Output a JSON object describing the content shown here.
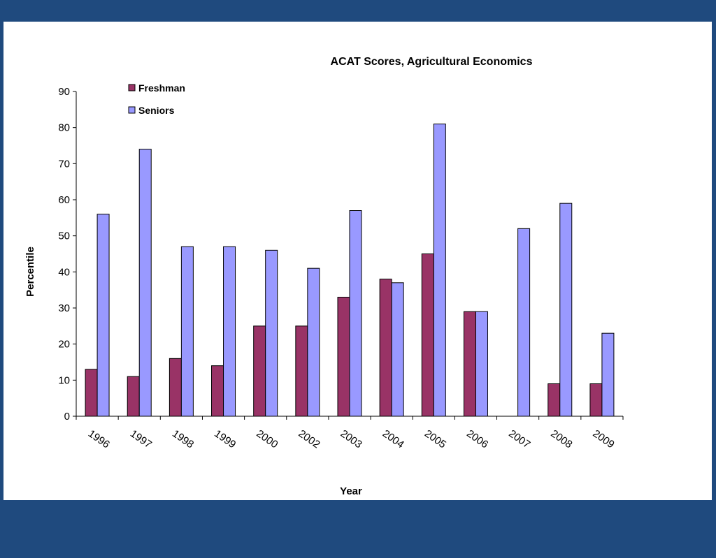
{
  "chart_data": {
    "type": "bar",
    "title": "ACAT Scores, Agricultural Economics",
    "xlabel": "Year",
    "ylabel": "Percentile",
    "categories": [
      "1996",
      "1997",
      "1998",
      "1999",
      "2000",
      "2002",
      "2003",
      "2004",
      "2005",
      "2006",
      "2007",
      "2008",
      "2009"
    ],
    "series": [
      {
        "name": "Freshman",
        "color": "#993366",
        "values": [
          13,
          11,
          16,
          14,
          25,
          25,
          33,
          38,
          45,
          29,
          null,
          9,
          9
        ]
      },
      {
        "name": "Seniors",
        "color": "#9999ff",
        "values": [
          56,
          74,
          47,
          47,
          46,
          41,
          57,
          37,
          81,
          29,
          52,
          59,
          23
        ]
      }
    ],
    "ylim": [
      0,
      90
    ],
    "yticks": [
      0,
      10,
      20,
      30,
      40,
      50,
      60,
      70,
      80,
      90
    ],
    "grid": false,
    "legend_position": "top-left"
  }
}
